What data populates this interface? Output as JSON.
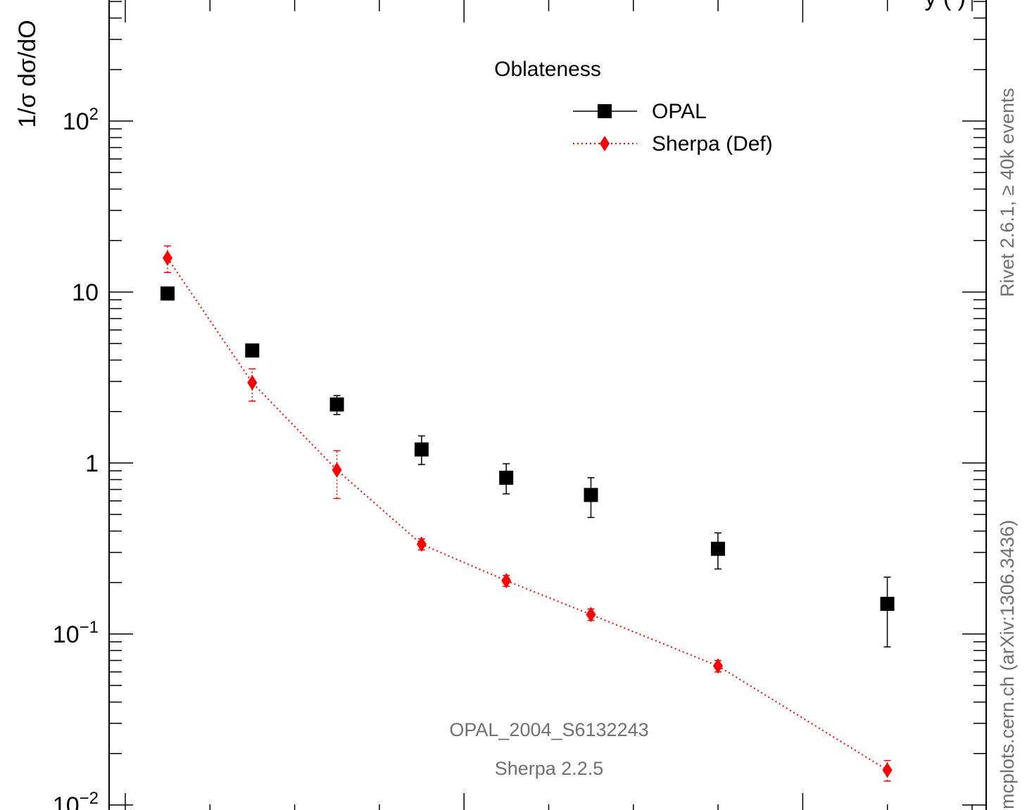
{
  "chart_data": {
    "type": "scatter",
    "ylabel": "1/σ dσ/dO",
    "yscale": "log",
    "ylim": [
      0.0085,
      520
    ],
    "ytick_labels": [
      {
        "value": 0.01,
        "base": "10",
        "exp": "−2"
      },
      {
        "value": 0.1,
        "base": "10",
        "exp": "−1"
      },
      {
        "value": 1,
        "base": "1",
        "exp": ""
      },
      {
        "value": 10,
        "base": "10",
        "exp": ""
      },
      {
        "value": 100,
        "base": "10",
        "exp": "2"
      }
    ],
    "legend_title": "Oblateness",
    "legend_position": "top-right",
    "series": [
      {
        "name": "OPAL",
        "color": "#000000",
        "marker": "square",
        "line": "none",
        "points": [
          {
            "x": 1,
            "y": 9.8,
            "lo": 9.3,
            "hi": 10.3
          },
          {
            "x": 2,
            "y": 4.55,
            "lo": 4.3,
            "hi": 4.8
          },
          {
            "x": 3,
            "y": 2.2,
            "lo": 1.92,
            "hi": 2.48
          },
          {
            "x": 4,
            "y": 1.2,
            "lo": 0.98,
            "hi": 1.44
          },
          {
            "x": 5,
            "y": 0.82,
            "lo": 0.66,
            "hi": 0.99
          },
          {
            "x": 6,
            "y": 0.65,
            "lo": 0.48,
            "hi": 0.82
          },
          {
            "x": 7.5,
            "y": 0.315,
            "lo": 0.24,
            "hi": 0.39
          },
          {
            "x": 9.5,
            "y": 0.15,
            "lo": 0.084,
            "hi": 0.215
          }
        ]
      },
      {
        "name": "Sherpa (Def)",
        "color": "#ff0000",
        "marker": "diamond",
        "line": "dotted",
        "points": [
          {
            "x": 1,
            "y": 15.8,
            "lo": 13.0,
            "hi": 18.6
          },
          {
            "x": 2,
            "y": 2.95,
            "lo": 2.3,
            "hi": 3.55
          },
          {
            "x": 3,
            "y": 0.91,
            "lo": 0.62,
            "hi": 1.18
          },
          {
            "x": 4,
            "y": 0.335,
            "lo": 0.31,
            "hi": 0.36
          },
          {
            "x": 5,
            "y": 0.205,
            "lo": 0.19,
            "hi": 0.22
          },
          {
            "x": 6,
            "y": 0.13,
            "lo": 0.12,
            "hi": 0.14
          },
          {
            "x": 7.5,
            "y": 0.065,
            "lo": 0.06,
            "hi": 0.07
          },
          {
            "x": 9.5,
            "y": 0.016,
            "lo": 0.0138,
            "hi": 0.0182
          }
        ]
      }
    ],
    "annotations": {
      "analysis": "OPAL_2004_S6132243",
      "generator": "Sherpa 2.2.5",
      "side_top": "Rivet 2.6.1,  ≥ 40k events",
      "side_bottom": "mcplots.cern.ch (arXiv:1306.3436)",
      "top_partial": "y  (         )"
    },
    "colors": {
      "annotation_text": "#707070",
      "frame": "#000000"
    }
  }
}
